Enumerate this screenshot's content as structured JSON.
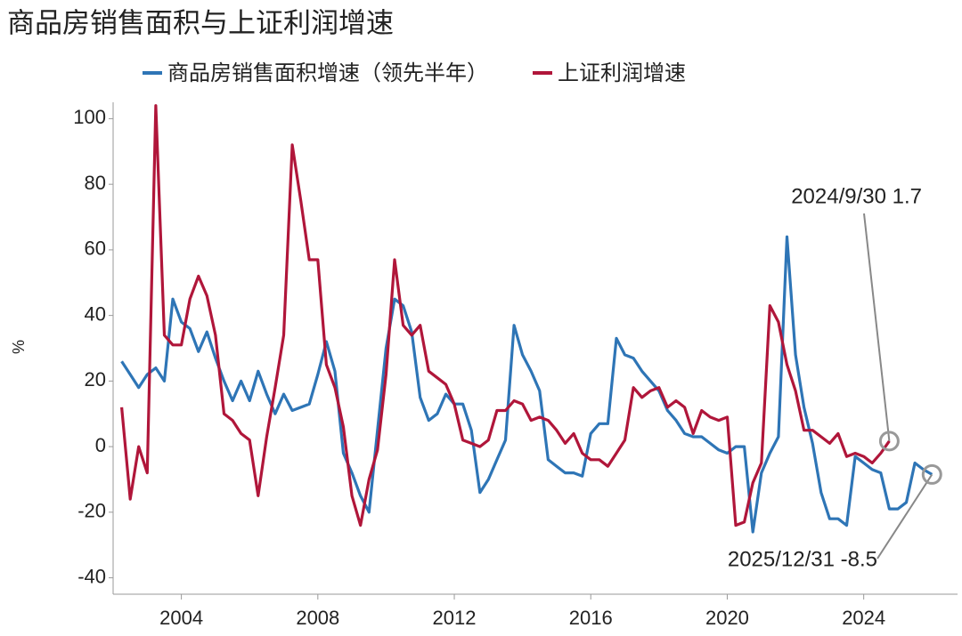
{
  "chart_data": {
    "type": "line",
    "title": "商品房销售面积与上证利润增速",
    "ylabel": "%",
    "x": [
      2002.25,
      2002.5,
      2002.75,
      2003,
      2003.25,
      2003.5,
      2003.75,
      2004,
      2004.25,
      2004.5,
      2004.75,
      2005,
      2005.25,
      2005.5,
      2005.75,
      2006,
      2006.25,
      2006.5,
      2006.75,
      2007,
      2007.25,
      2007.5,
      2007.75,
      2008,
      2008.25,
      2008.5,
      2008.75,
      2009,
      2009.25,
      2009.5,
      2009.75,
      2010,
      2010.25,
      2010.5,
      2010.75,
      2011,
      2011.25,
      2011.5,
      2011.75,
      2012,
      2012.25,
      2012.5,
      2012.75,
      2013,
      2013.25,
      2013.5,
      2013.75,
      2014,
      2014.25,
      2014.5,
      2014.75,
      2015,
      2015.25,
      2015.5,
      2015.75,
      2016,
      2016.25,
      2016.5,
      2016.75,
      2017,
      2017.25,
      2017.5,
      2017.75,
      2018,
      2018.25,
      2018.5,
      2018.75,
      2019,
      2019.25,
      2019.5,
      2019.75,
      2020,
      2020.25,
      2020.5,
      2020.75,
      2021,
      2021.25,
      2021.5,
      2021.75,
      2022,
      2022.25,
      2022.5,
      2022.75,
      2023,
      2023.25,
      2023.5,
      2023.75,
      2024,
      2024.25,
      2024.5,
      2024.75,
      2025,
      2025.25,
      2025.5,
      2025.75,
      2026
    ],
    "series": [
      {
        "name": "商品房销售面积增速（领先半年）",
        "color": "#2e75b6",
        "values": [
          26,
          22,
          18,
          22,
          24,
          20,
          45,
          38,
          36,
          29,
          35,
          27,
          20,
          14,
          20,
          14,
          23,
          16,
          10,
          16,
          11,
          12,
          13,
          22,
          32,
          23,
          -2,
          -8,
          -15,
          -20,
          5,
          30,
          45,
          43,
          35,
          15,
          8,
          10,
          16,
          13,
          13,
          5,
          -14,
          -10,
          -4,
          2,
          37,
          28,
          23,
          17,
          -4,
          -6,
          -8,
          -8,
          -9,
          4,
          7,
          7,
          33,
          28,
          27,
          23,
          20,
          17,
          11,
          8,
          4,
          3,
          3,
          1,
          -1,
          -2,
          0,
          0,
          -26,
          -8,
          -2,
          3,
          64,
          28,
          12,
          1,
          -14,
          -22,
          -22,
          -24,
          -3,
          -5,
          -7,
          -8,
          -19,
          -19,
          -17,
          -5,
          -7,
          -8.5
        ]
      },
      {
        "name": "上证利润增速",
        "color": "#b0163a",
        "values": [
          12,
          -16,
          0,
          -8,
          104,
          34,
          31,
          31,
          45,
          52,
          46,
          34,
          10,
          8,
          4,
          2,
          -15,
          3,
          18,
          34,
          92,
          75,
          57,
          57,
          25,
          18,
          6,
          -15,
          -24,
          -10,
          -1,
          22,
          57,
          37,
          34,
          37,
          23,
          21,
          19,
          13,
          2,
          1,
          0,
          2,
          11,
          11,
          14,
          13,
          8,
          9,
          8,
          5,
          1,
          4,
          -2,
          -4,
          -4,
          -6,
          -2,
          2,
          18,
          15,
          17,
          18,
          12,
          14,
          12,
          4,
          11,
          9,
          8,
          9,
          -24,
          -23,
          -11,
          -5,
          43,
          38,
          25,
          17,
          5,
          5,
          3,
          1,
          4,
          -3,
          -2,
          -3,
          -5,
          -2,
          1.7,
          null,
          null,
          null,
          null,
          null
        ]
      }
    ],
    "annotations": [
      "2025/12/31 -8.5",
      "2024/9/30 1.7"
    ],
    "xlim": [
      2002,
      2026.75
    ],
    "xticks": [
      2004,
      2008,
      2012,
      2016,
      2020,
      2024
    ],
    "ylim": [
      -45,
      105
    ],
    "yticks": [
      -40,
      -20,
      0,
      20,
      40,
      60,
      80,
      100
    ],
    "grid": false
  }
}
